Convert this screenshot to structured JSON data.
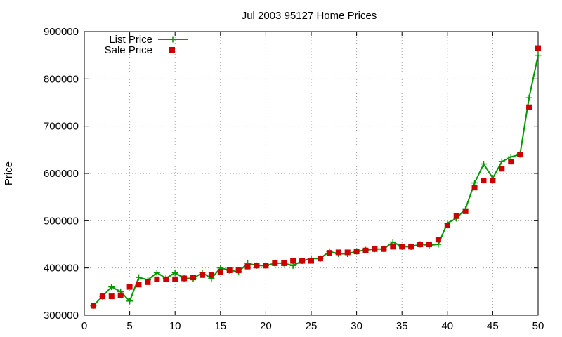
{
  "chart_data": {
    "type": "line",
    "title": "Jul 2003 95127 Home Prices",
    "xlabel": "",
    "ylabel": "Price",
    "xlim": [
      0,
      50
    ],
    "ylim": [
      300000,
      900000
    ],
    "x_ticks": [
      "0",
      "5",
      "10",
      "15",
      "20",
      "25",
      "30",
      "35",
      "40",
      "45",
      "50"
    ],
    "y_ticks": [
      "300000",
      "400000",
      "500000",
      "600000",
      "700000",
      "800000",
      "900000"
    ],
    "grid": true,
    "legend_position": "top-left",
    "x": [
      1,
      2,
      3,
      4,
      5,
      6,
      7,
      8,
      9,
      10,
      11,
      12,
      13,
      14,
      15,
      16,
      17,
      18,
      19,
      20,
      21,
      22,
      23,
      24,
      25,
      26,
      27,
      28,
      29,
      30,
      31,
      32,
      33,
      34,
      35,
      36,
      37,
      38,
      39,
      40,
      41,
      42,
      43,
      44,
      45,
      46,
      47,
      48,
      49,
      50
    ],
    "series": [
      {
        "name": "List Price",
        "style": "line-with-plus-markers",
        "color": "#009900",
        "values": [
          320000,
          340000,
          360000,
          350000,
          330000,
          380000,
          375000,
          390000,
          378000,
          390000,
          378000,
          378000,
          390000,
          378000,
          400000,
          395000,
          392000,
          410000,
          405000,
          405000,
          410000,
          410000,
          405000,
          415000,
          420000,
          420000,
          435000,
          430000,
          430000,
          435000,
          438000,
          440000,
          440000,
          455000,
          445000,
          445000,
          450000,
          448000,
          450000,
          495000,
          505000,
          525000,
          580000,
          620000,
          590000,
          625000,
          635000,
          640000,
          760000,
          850000
        ]
      },
      {
        "name": "Sale Price",
        "style": "square-markers",
        "color": "#cc0000",
        "values": [
          320000,
          340000,
          340000,
          342000,
          360000,
          365000,
          370000,
          376000,
          376000,
          376000,
          378000,
          380000,
          385000,
          385000,
          392000,
          395000,
          395000,
          403000,
          405000,
          405000,
          410000,
          410000,
          415000,
          415000,
          415000,
          420000,
          432000,
          433000,
          433000,
          435000,
          437000,
          440000,
          440000,
          445000,
          445000,
          445000,
          450000,
          450000,
          460000,
          490000,
          510000,
          520000,
          570000,
          585000,
          585000,
          610000,
          625000,
          640000,
          740000,
          865000
        ]
      }
    ]
  }
}
